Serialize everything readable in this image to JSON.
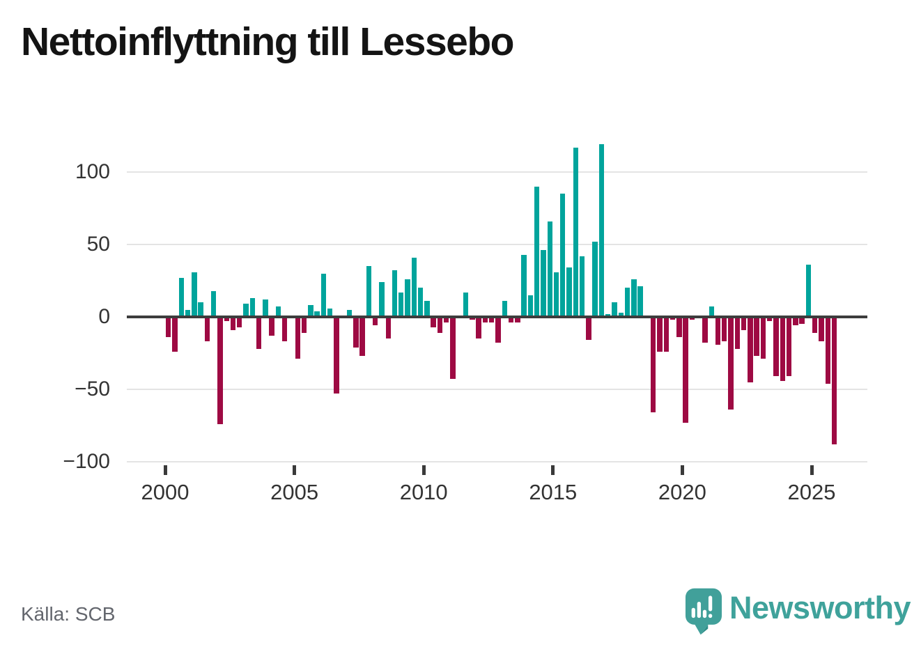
{
  "title": "Nettoinflyttning till Lessebo",
  "source_caption": "Källa: SCB",
  "logo": {
    "text": "Newsworthy"
  },
  "colors": {
    "positive_bar": "#00a49c",
    "negative_bar": "#9e0a43",
    "zero_line": "#3d3d3d",
    "gridline": "#e4e4e4",
    "axis_label": "#333333",
    "title_text": "#141414",
    "source_text": "#63666d",
    "logo_teal": "#3fa29b"
  },
  "chart_data": {
    "type": "bar",
    "title": "Nettoinflyttning till Lessebo",
    "xlabel": "",
    "ylabel": "",
    "frequency": "quarterly",
    "start_year": 2000,
    "start_period": "2000Q1",
    "end_period": "2025Q4",
    "x_tick_years": [
      2000,
      2005,
      2010,
      2015,
      2020,
      2025
    ],
    "y_ticks": [
      100,
      50,
      0,
      -50,
      -100
    ],
    "ylim": [
      -100,
      125
    ],
    "grid": "horizontal",
    "legend": "none",
    "series": [
      {
        "name": "Nettoinflyttning",
        "values": [
          -14,
          -24,
          27,
          5,
          31,
          10,
          -17,
          18,
          -74,
          -3,
          -9,
          -7,
          9,
          13,
          -22,
          12,
          -13,
          7,
          -17,
          0,
          -29,
          -11,
          8,
          4,
          30,
          6,
          -53,
          0,
          5,
          -21,
          -27,
          35,
          -6,
          24,
          -15,
          32,
          17,
          26,
          41,
          20,
          11,
          -7,
          -11,
          -4,
          -43,
          0,
          17,
          -2,
          -15,
          -4,
          -4,
          -18,
          11,
          -4,
          -4,
          43,
          15,
          90,
          46,
          66,
          31,
          85,
          34,
          117,
          42,
          -16,
          52,
          119,
          2,
          10,
          3,
          20,
          26,
          21,
          0,
          -66,
          -24,
          -24,
          -2,
          -14,
          -73,
          -2,
          0,
          -18,
          7,
          -19,
          -17,
          -64,
          -22,
          -9,
          -45,
          -27,
          -29,
          -3,
          -41,
          -44,
          -41,
          -6,
          -5,
          36,
          -11,
          -17,
          -46,
          -88
        ]
      }
    ]
  }
}
